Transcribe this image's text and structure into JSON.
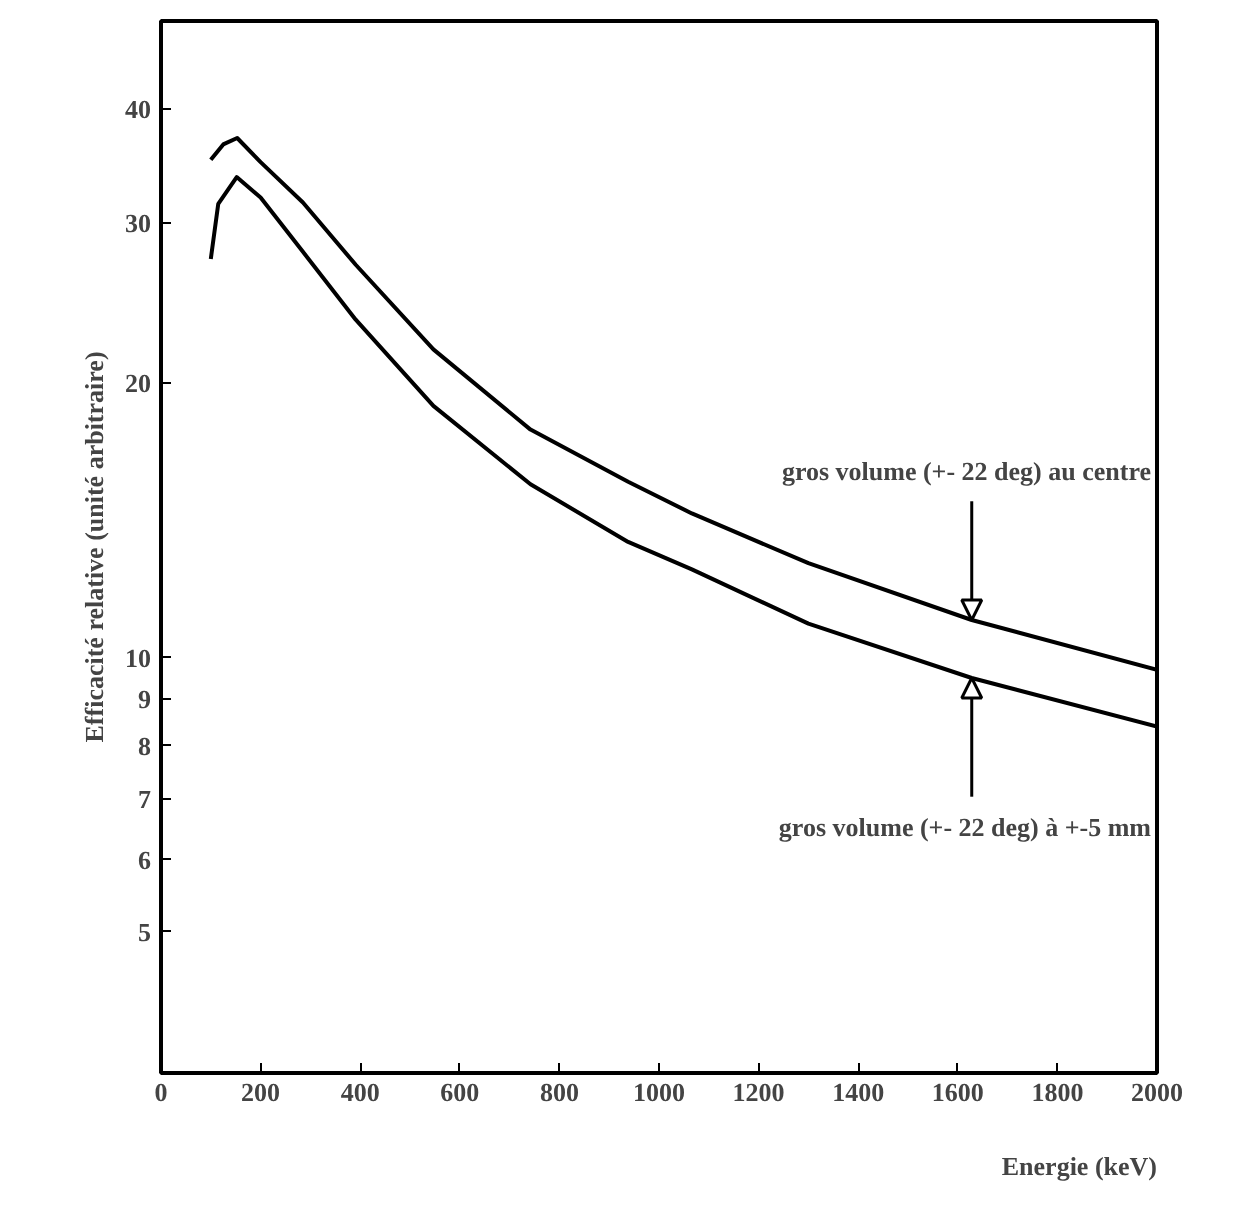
{
  "chart_data": {
    "type": "line",
    "xlabel": "Energie (keV)",
    "ylabel": "Efficacité relative (unité arbitraire)",
    "log": "y",
    "grid": false,
    "marker": "none",
    "line_style": "solid",
    "xlim": [
      0,
      2000
    ],
    "ylim": [
      3.5,
      50
    ],
    "xticks": [
      0,
      200,
      400,
      600,
      800,
      1000,
      1200,
      1400,
      1600,
      1800,
      2000
    ],
    "yticks": [
      5,
      6,
      7,
      8,
      9,
      10,
      20,
      30,
      40
    ],
    "series": [
      {
        "color": "#000000",
        "x": [
          100,
          125,
          153,
          200,
          285,
          391,
          547,
          742,
          938,
          1066,
          1300,
          1628,
          2000
        ],
        "values": [
          35.2,
          36.6,
          37.2,
          35.0,
          31.6,
          27.0,
          21.8,
          17.8,
          15.6,
          14.4,
          12.7,
          11.0,
          9.7
        ]
      },
      {
        "color": "#000000",
        "x": [
          100,
          115,
          152,
          200,
          285,
          391,
          547,
          742,
          938,
          1066,
          1300,
          1628,
          2000
        ],
        "values": [
          27.4,
          31.5,
          33.7,
          32.0,
          27.9,
          23.5,
          18.9,
          15.5,
          13.4,
          12.5,
          10.9,
          9.5,
          8.4
        ]
      }
    ],
    "annotations": [
      {
        "text": "gros volume (+- 22 deg) au centre",
        "x": 1628,
        "y": 11.0
      },
      {
        "text": "gros volume (+- 22 deg) à +-5 mm",
        "x": 1628,
        "y": 9.5
      }
    ]
  }
}
